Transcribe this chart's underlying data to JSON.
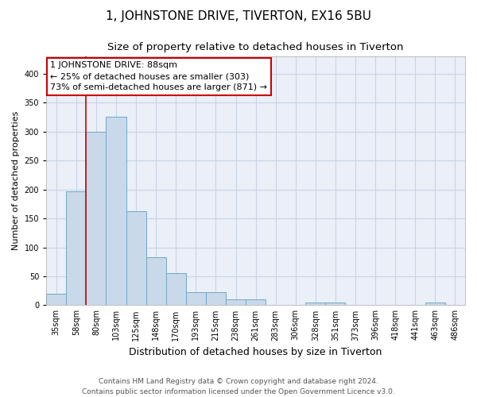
{
  "title": "1, JOHNSTONE DRIVE, TIVERTON, EX16 5BU",
  "subtitle": "Size of property relative to detached houses in Tiverton",
  "xlabel": "Distribution of detached houses by size in Tiverton",
  "ylabel": "Number of detached properties",
  "categories": [
    "35sqm",
    "58sqm",
    "80sqm",
    "103sqm",
    "125sqm",
    "148sqm",
    "170sqm",
    "193sqm",
    "215sqm",
    "238sqm",
    "261sqm",
    "283sqm",
    "306sqm",
    "328sqm",
    "351sqm",
    "373sqm",
    "396sqm",
    "418sqm",
    "441sqm",
    "463sqm",
    "486sqm"
  ],
  "values": [
    20,
    197,
    300,
    325,
    163,
    83,
    55,
    23,
    23,
    10,
    10,
    0,
    0,
    5,
    5,
    0,
    0,
    0,
    0,
    5,
    0
  ],
  "bar_color": "#c9d9ea",
  "bar_edge_color": "#6fa8c8",
  "red_line_x": 1.5,
  "annotation_text": "1 JOHNSTONE DRIVE: 88sqm\n← 25% of detached houses are smaller (303)\n73% of semi-detached houses are larger (871) →",
  "annotation_box_color": "white",
  "annotation_box_edge_color": "#cc0000",
  "ylim": [
    0,
    430
  ],
  "yticks": [
    0,
    50,
    100,
    150,
    200,
    250,
    300,
    350,
    400
  ],
  "grid_color": "#c8d4e4",
  "background_color": "#eaeff8",
  "footer_line1": "Contains HM Land Registry data © Crown copyright and database right 2024.",
  "footer_line2": "Contains public sector information licensed under the Open Government Licence v3.0.",
  "title_fontsize": 11,
  "subtitle_fontsize": 9.5,
  "xlabel_fontsize": 9,
  "ylabel_fontsize": 8,
  "tick_fontsize": 7,
  "annotation_fontsize": 8,
  "footer_fontsize": 6.5
}
